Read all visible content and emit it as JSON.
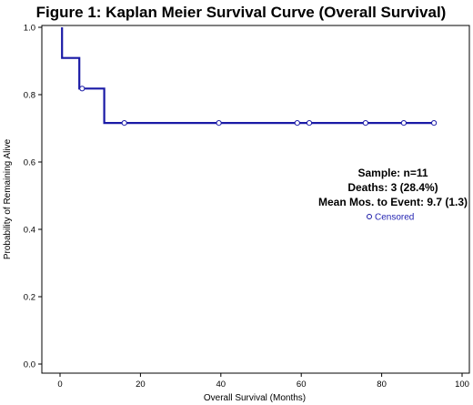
{
  "chart_data": {
    "type": "line",
    "title": "Figure 1: Kaplan Meier Survival Curve (Overall Survival)",
    "xlabel": "Overall Survival (Months)",
    "ylabel": "Probability of Remaining Alive",
    "xlim": [
      0,
      100
    ],
    "ylim": [
      0,
      1
    ],
    "x_ticks": [
      "0",
      "20",
      "40",
      "60",
      "80",
      "100"
    ],
    "y_ticks": [
      "0.0",
      "0.2",
      "0.4",
      "0.6",
      "0.8",
      "1.0"
    ],
    "series": [
      {
        "step_points": [
          [
            0.5,
            1.0
          ],
          [
            0.5,
            0.909
          ],
          [
            4.8,
            0.909
          ],
          [
            4.8,
            0.818
          ],
          [
            11.0,
            0.818
          ],
          [
            11.0,
            0.716
          ],
          [
            93.0,
            0.716
          ]
        ],
        "censored": [
          [
            5.5,
            0.818
          ],
          [
            16.0,
            0.716
          ],
          [
            39.5,
            0.716
          ],
          [
            59.0,
            0.716
          ],
          [
            62.0,
            0.716
          ],
          [
            76.0,
            0.716
          ],
          [
            85.5,
            0.716
          ],
          [
            93.0,
            0.716
          ]
        ]
      }
    ],
    "annotations": [
      "Sample: n=11",
      "Deaths: 3 (28.4%)",
      "Mean Mos. to Event: 9.7 (1.3)"
    ],
    "legend": {
      "label": "Censored",
      "symbol": "o",
      "placement": "right"
    },
    "grid": false,
    "colors": {
      "line": "#1a1aa6",
      "axis": "#000000",
      "legend_text": "#1f1fb0"
    }
  }
}
